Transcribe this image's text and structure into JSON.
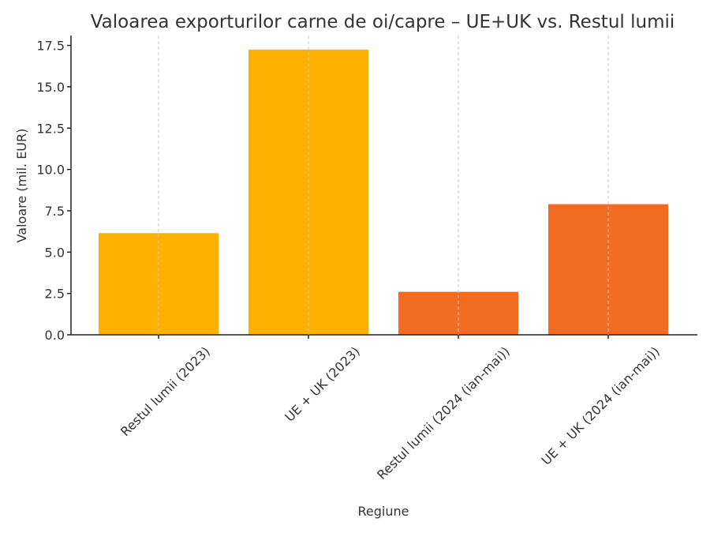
{
  "chart_data": {
    "type": "bar",
    "title": "Valoarea exporturilor carne de oi/capre – UE+UK vs. Restul lumii",
    "xlabel": "Regiune",
    "ylabel": "Valoare (mil. EUR)",
    "categories": [
      "Restul lumii (2023)",
      "UE + UK (2023)",
      "Restul lumii (2024 (ian-mai))",
      "UE + UK (2024 (ian-mai))"
    ],
    "values": [
      6.15,
      17.25,
      2.6,
      7.9
    ],
    "colors": [
      "#FFB000",
      "#FFB000",
      "#F26B21",
      "#F26B21"
    ],
    "ylim": [
      0,
      18.1
    ],
    "yticks": [
      "0.0",
      "2.5",
      "5.0",
      "7.5",
      "10.0",
      "12.5",
      "15.0",
      "17.5"
    ],
    "grid": "vertical dashed at category positions",
    "legend": "none"
  }
}
